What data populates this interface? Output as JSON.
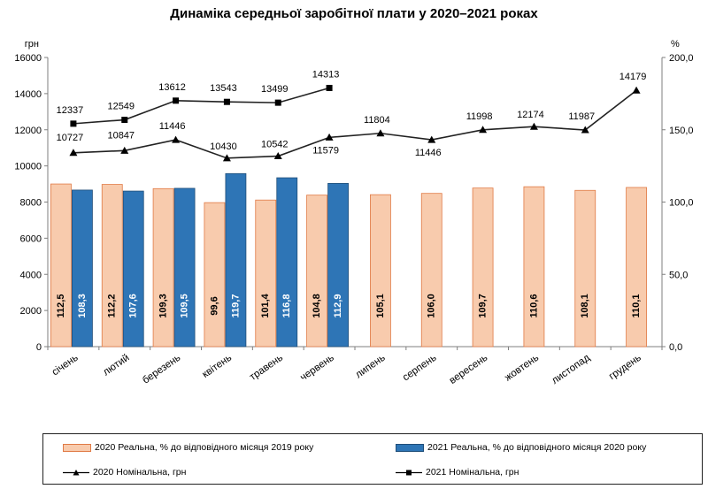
{
  "chart_data": {
    "type": "bar",
    "title": "Динаміка середньої заробітної плати у 2020–2021 роках",
    "y_left_label": "грн",
    "y_right_label": "%",
    "y_left_lim": [
      0,
      16000
    ],
    "y_right_lim": [
      0,
      200
    ],
    "y_left_ticks": [
      "0",
      "2000",
      "4000",
      "6000",
      "8000",
      "10000",
      "12000",
      "14000",
      "16000"
    ],
    "y_right_ticks": [
      "0,0",
      "50,0",
      "100,0",
      "150,0",
      "200,0"
    ],
    "categories": [
      "січень",
      "лютий",
      "березень",
      "квітень",
      "травень",
      "червень",
      "липень",
      "серпень",
      "вересень",
      "жовтень",
      "листопад",
      "грудень"
    ],
    "bar_series": [
      {
        "name": "2020 Реальна, % до відповідного місяця 2019 року",
        "color": "#f8cbad",
        "border": "#e07a45",
        "values": [
          112.5,
          112.2,
          109.3,
          99.6,
          101.4,
          104.8,
          105.1,
          106.0,
          109.7,
          110.6,
          108.1,
          110.1
        ],
        "labels": [
          "112,5",
          "112,2",
          "109,3",
          "99,6",
          "101,4",
          "104,8",
          "105,1",
          "106,0",
          "109,7",
          "110,6",
          "108,1",
          "110,1"
        ]
      },
      {
        "name": "2021 Реальна, % до відповідного місяця 2020 року",
        "color": "#2e75b6",
        "border": "#1f4e79",
        "values": [
          108.3,
          107.6,
          109.5,
          119.7,
          116.8,
          112.9
        ],
        "labels": [
          "108,3",
          "107,6",
          "109,5",
          "119,7",
          "116,8",
          "112,9"
        ]
      }
    ],
    "line_series": [
      {
        "name": "2020 Номінальна, грн",
        "marker": "triangle",
        "values": [
          10727,
          10847,
          11446,
          10430,
          10542,
          11579,
          11804,
          11446,
          11998,
          12174,
          11987,
          14179
        ],
        "labels": [
          "10727",
          "10847",
          "11446",
          "10430",
          "10542",
          "11579",
          "11804",
          "11446",
          "11998",
          "12174",
          "11987",
          "14179"
        ]
      },
      {
        "name": "2021 Номінальна, грн",
        "marker": "square",
        "values": [
          12337,
          12549,
          13612,
          13543,
          13499,
          14313
        ],
        "labels": [
          "12337",
          "12549",
          "13612",
          "13543",
          "13499",
          "14313"
        ]
      }
    ]
  }
}
